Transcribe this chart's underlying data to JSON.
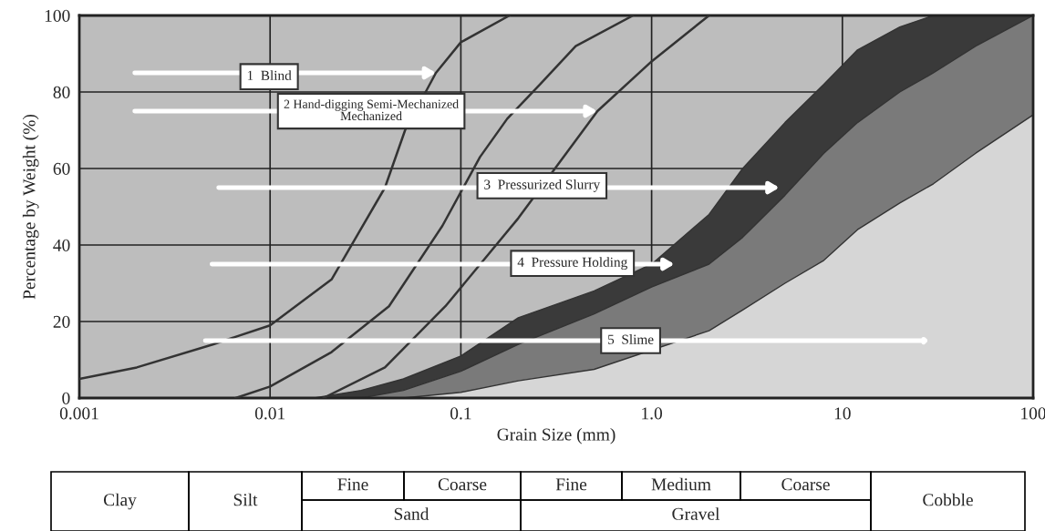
{
  "chart_data": {
    "type": "line",
    "xlabel": "Grain Size (mm)",
    "ylabel": "Percentage by Weight (%)",
    "log": "x",
    "xlim": [
      0.001,
      100
    ],
    "xticks": [
      0.001,
      0.01,
      0.1,
      {
        "value": 1,
        "label": "1.0"
      },
      10,
      100
    ],
    "ylim": [
      0,
      100
    ],
    "yticks": [
      0,
      20,
      40,
      60,
      80,
      100
    ],
    "grid": true,
    "legend": false,
    "series": [
      {
        "type": "area",
        "color": "#3a3a3a",
        "x": [
          0.017,
          0.03,
          0.05,
          0.1,
          0.2,
          0.5,
          1,
          2,
          3,
          5,
          8,
          12,
          20,
          30,
          50,
          100
        ],
        "values": [
          0,
          2,
          5,
          11,
          21,
          28,
          35,
          48,
          60,
          72,
          82,
          91,
          97,
          100,
          100,
          100
        ]
      },
      {
        "type": "area",
        "color": "#7a7a7a",
        "x": [
          0.03,
          0.05,
          0.1,
          0.2,
          0.5,
          1,
          2,
          3,
          5,
          8,
          12,
          20,
          30,
          50,
          100
        ],
        "values": [
          0,
          2,
          7,
          14,
          22,
          29,
          35,
          42,
          53,
          64,
          72,
          80,
          85,
          92,
          100
        ]
      },
      {
        "type": "area",
        "color": "#d6d6d6",
        "x": [
          0.05,
          0.1,
          0.2,
          0.5,
          2,
          3,
          5,
          8,
          12,
          20,
          30,
          50,
          100
        ],
        "values": [
          0,
          1.5,
          4.5,
          7.5,
          17.6,
          23,
          30,
          36,
          44,
          51,
          56,
          64,
          74
        ]
      },
      {
        "color": "#333333",
        "x": [
          0.001,
          0.002,
          0.005,
          0.01,
          0.021,
          0.04,
          0.051,
          0.074,
          0.1,
          0.18
        ],
        "values": [
          5,
          8,
          14,
          19,
          31,
          55,
          70,
          85,
          93,
          100
        ]
      },
      {
        "color": "#333333",
        "x": [
          0.0066,
          0.01,
          0.021,
          0.042,
          0.08,
          0.126,
          0.175,
          0.26,
          0.4,
          0.8
        ],
        "values": [
          0,
          3,
          12,
          24,
          45,
          63,
          73,
          82,
          92,
          100
        ]
      },
      {
        "color": "#333333",
        "x": [
          0.019,
          0.04,
          0.083,
          0.2,
          0.52,
          1.0,
          2.0
        ],
        "values": [
          0,
          8,
          24,
          47,
          75,
          88,
          100
        ]
      }
    ],
    "annotations": [
      "1  Blind",
      "2 Hand-digging Semi-Mechanized\nMechanized",
      "3  Pressurized Slurry",
      "4  Pressure Holding",
      "5  Slime",
      "Clay",
      "Silt",
      "Fine",
      "Coarse",
      "Sand",
      "Fine",
      "Medium",
      "Coarse",
      "Gravel",
      "Cobble"
    ]
  }
}
